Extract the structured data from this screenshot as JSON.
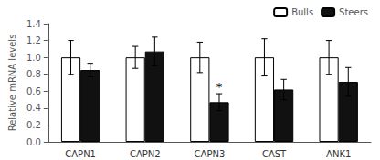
{
  "chart_data": {
    "type": "bar",
    "categories": [
      "CAPN1",
      "CAPN2",
      "CAPN3",
      "CAST",
      "ANK1"
    ],
    "series": [
      {
        "name": "Bulls",
        "color": "#ffffff",
        "values": [
          1.0,
          1.0,
          1.0,
          1.0,
          1.0
        ],
        "errors": [
          0.2,
          0.13,
          0.18,
          0.22,
          0.2
        ]
      },
      {
        "name": "Steers",
        "color": "#111111",
        "values": [
          0.85,
          1.07,
          0.47,
          0.62,
          0.71
        ],
        "errors": [
          0.08,
          0.17,
          0.1,
          0.12,
          0.17
        ]
      }
    ],
    "ylabel": "Relative mRNA levels",
    "ylim": [
      0,
      1.4
    ],
    "yticks": [
      {
        "value": 0.0,
        "label": "0.0"
      },
      0.2,
      0.4,
      0.6,
      0.8,
      {
        "value": 1.0,
        "label": "1.0"
      },
      1.2,
      1.4
    ],
    "annotations": [
      {
        "text": "*",
        "category": "CAPN3",
        "series": "Steers"
      }
    ],
    "legend": "upper right",
    "grid": false
  }
}
